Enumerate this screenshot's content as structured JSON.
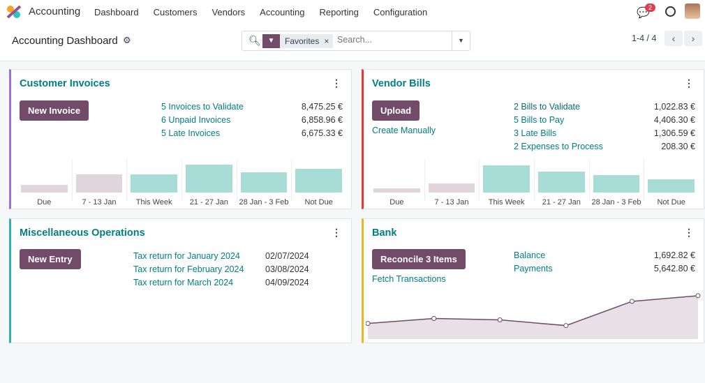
{
  "nav": {
    "app": "Accounting",
    "menu": [
      "Dashboard",
      "Customers",
      "Vendors",
      "Accounting",
      "Reporting",
      "Configuration"
    ],
    "messages_count": "2"
  },
  "control": {
    "title": "Accounting Dashboard",
    "facet": "Favorites",
    "search_placeholder": "Search...",
    "pager": "1-4 / 4"
  },
  "colors": {
    "brand": "#714b67",
    "link": "#017e84",
    "customer": "#9b6fd6",
    "vendor": "#e53935",
    "misc": "#2fb2a8",
    "bank": "#e8b923",
    "bar_past": "#e0d4dd",
    "bar_future": "#a8dcd6"
  },
  "customer": {
    "title": "Customer Invoices",
    "button": "New Invoice",
    "rows": [
      {
        "label": "5 Invoices to Validate",
        "value": "8,475.25 €"
      },
      {
        "label": "6 Unpaid Invoices",
        "value": "6,858.96 €"
      },
      {
        "label": "5 Late Invoices",
        "value": "6,675.33 €"
      }
    ],
    "chart_data": {
      "type": "bar",
      "categories": [
        "Due",
        "7 - 13 Jan",
        "This Week",
        "21 - 27 Jan",
        "28 Jan - 3 Feb",
        "Not Due"
      ],
      "values": [
        11,
        27,
        27,
        41,
        30,
        35
      ],
      "past": [
        true,
        true,
        false,
        false,
        false,
        false
      ]
    }
  },
  "vendor": {
    "title": "Vendor Bills",
    "button": "Upload",
    "link": "Create Manually",
    "rows": [
      {
        "label": "2 Bills to Validate",
        "value": "1,022.83 €"
      },
      {
        "label": "5 Bills to Pay",
        "value": "4,406.30 €"
      },
      {
        "label": "3 Late Bills",
        "value": "1,306.59 €"
      },
      {
        "label": "2 Expenses to Process",
        "value": "208.30 €"
      }
    ],
    "chart_data": {
      "type": "bar",
      "categories": [
        "Due",
        "7 - 13 Jan",
        "This Week",
        "21 - 27 Jan",
        "28 Jan - 3 Feb",
        "Not Due"
      ],
      "values": [
        6,
        13,
        40,
        31,
        26,
        19
      ],
      "past": [
        true,
        true,
        false,
        false,
        false,
        false
      ]
    }
  },
  "misc": {
    "title": "Miscellaneous Operations",
    "button": "New Entry",
    "rows": [
      {
        "label": "Tax return for January 2024",
        "value": "02/07/2024"
      },
      {
        "label": "Tax return for February 2024",
        "value": "03/08/2024"
      },
      {
        "label": "Tax return for March 2024",
        "value": "04/09/2024"
      }
    ]
  },
  "bank": {
    "title": "Bank",
    "button": "Reconcile 3 Items",
    "link": "Fetch Transactions",
    "rows": [
      {
        "label": "Balance",
        "value": "1,692.82 €"
      },
      {
        "label": "Payments",
        "value": "5,642.80 €"
      }
    ],
    "chart_data": {
      "type": "area",
      "values": [
        19,
        26,
        24,
        16,
        50,
        58
      ]
    }
  }
}
